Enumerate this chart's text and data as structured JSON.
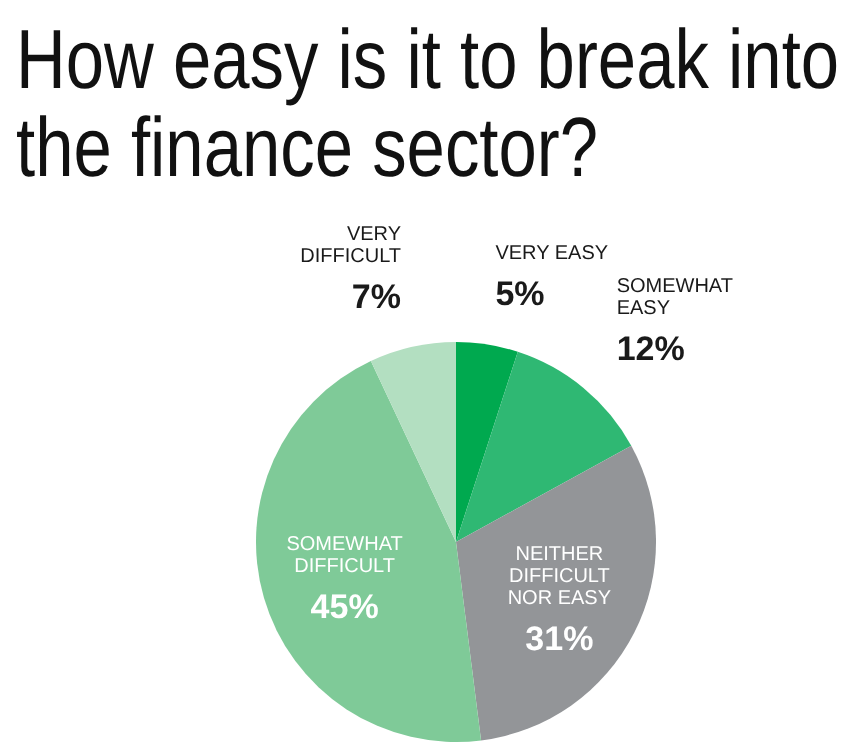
{
  "chart_data": {
    "type": "pie",
    "title": "How easy is it to break into the finance sector?",
    "categories": [
      "VERY EASY",
      "SOMEWHAT EASY",
      "NEITHER DIFFICULT NOR EASY",
      "SOMEWHAT DIFFICULT",
      "VERY DIFFICULT"
    ],
    "values": [
      5,
      12,
      31,
      45,
      7
    ],
    "value_labels": [
      "5%",
      "12%",
      "31%",
      "45%",
      "7%"
    ],
    "colors": [
      "#00a94f",
      "#2fb873",
      "#939598",
      "#7fca98",
      "#b3dfc1"
    ]
  }
}
